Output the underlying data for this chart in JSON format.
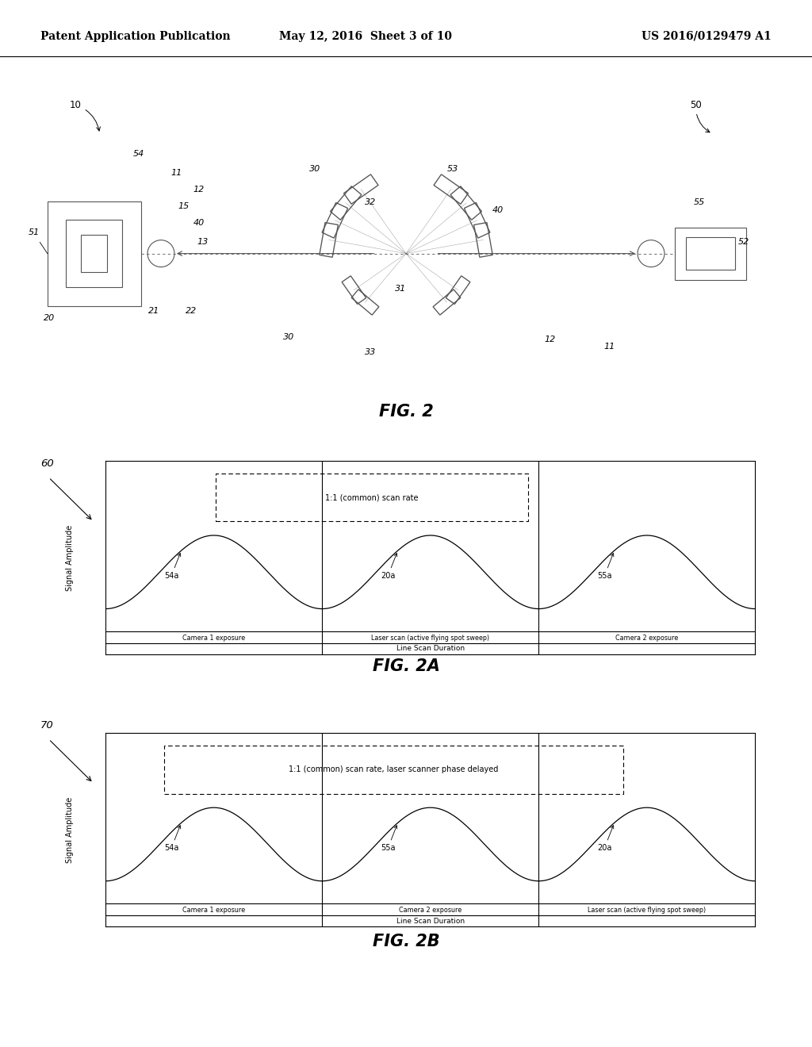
{
  "bg_color": "#ffffff",
  "header_left": "Patent Application Publication",
  "header_mid": "May 12, 2016  Sheet 3 of 10",
  "header_right": "US 2016/0129479 A1",
  "fig2_label": "FIG. 2",
  "fig2a_label": "FIG. 2A",
  "fig2b_label": "FIG. 2B",
  "fig2a_title": "1:1 (common) scan rate",
  "fig2b_title": "1:1 (common) scan rate, laser scanner phase delayed",
  "fig2a_sections": [
    "Camera 1 exposure",
    "Laser scan (active flying spot sweep)",
    "Camera 2 exposure"
  ],
  "fig2b_sections": [
    "Camera 1 exposure",
    "Camera 2 exposure",
    "Laser scan (active flying spot sweep)"
  ],
  "fig2a_duration": "Line Scan Duration",
  "fig2b_duration": "Line Scan Duration",
  "fig2a_ylabel": "Signal Amplitude",
  "fig2b_ylabel": "Signal Amplitude",
  "fig2a_curve_labels": [
    "54a",
    "20a",
    "55a"
  ],
  "fig2b_curve_labels": [
    "54a",
    "55a",
    "20a"
  ],
  "gray": "#555555",
  "light_gray": "#888888"
}
